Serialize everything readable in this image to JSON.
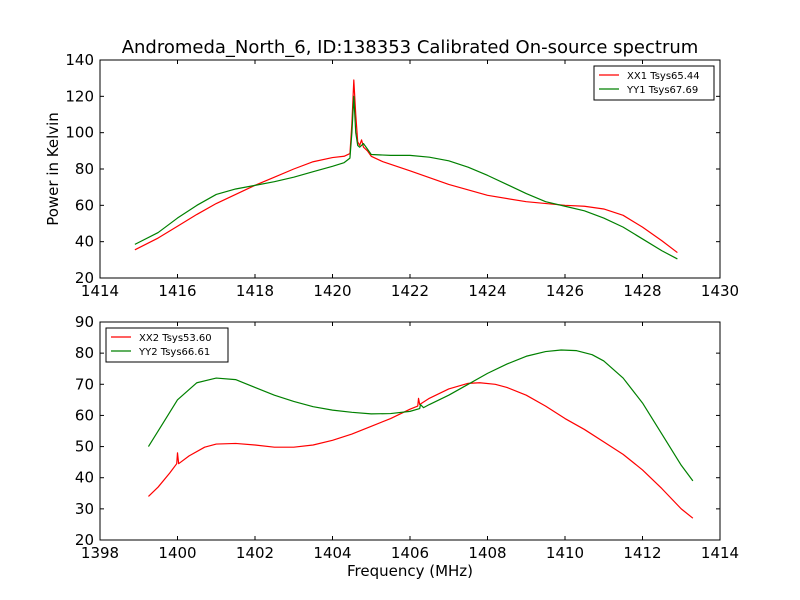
{
  "title": "Andromeda_North_6, ID:138353 Calibrated On-source spectrum",
  "xlabel": "Frequency (MHz)",
  "ylabel": "Power in Kelvin",
  "chart_data": [
    {
      "type": "line",
      "xlim": [
        1414,
        1430
      ],
      "ylim": [
        20,
        140
      ],
      "xticks": [
        1414,
        1416,
        1418,
        1420,
        1422,
        1424,
        1426,
        1428,
        1430
      ],
      "yticks": [
        20,
        40,
        60,
        80,
        100,
        120,
        140
      ],
      "legend_position": "top-right",
      "series": [
        {
          "name": "XX1 Tsys65.44",
          "color": "#ff0000",
          "points": [
            [
              1414.9,
              35.5
            ],
            [
              1415.5,
              42
            ],
            [
              1416,
              48.5
            ],
            [
              1416.5,
              55
            ],
            [
              1417,
              61
            ],
            [
              1417.5,
              66
            ],
            [
              1418,
              71
            ],
            [
              1418.5,
              75.5
            ],
            [
              1419,
              80
            ],
            [
              1419.5,
              84
            ],
            [
              1420,
              86.3
            ],
            [
              1420.3,
              87
            ],
            [
              1420.45,
              88.5
            ],
            [
              1420.5,
              105
            ],
            [
              1420.55,
              129
            ],
            [
              1420.6,
              110
            ],
            [
              1420.65,
              95
            ],
            [
              1420.7,
              93
            ],
            [
              1420.75,
              96
            ],
            [
              1420.8,
              92
            ],
            [
              1420.9,
              90
            ],
            [
              1421,
              87
            ],
            [
              1421.3,
              84
            ],
            [
              1422,
              79
            ],
            [
              1423,
              71.5
            ],
            [
              1424,
              65.5
            ],
            [
              1425,
              62
            ],
            [
              1426,
              60
            ],
            [
              1426.5,
              59.5
            ],
            [
              1427,
              58
            ],
            [
              1427.5,
              54.5
            ],
            [
              1428,
              48
            ],
            [
              1428.5,
              40.5
            ],
            [
              1428.9,
              34
            ]
          ]
        },
        {
          "name": "YY1 Tsys67.69",
          "color": "#008000",
          "points": [
            [
              1414.9,
              38.5
            ],
            [
              1415.5,
              45
            ],
            [
              1416,
              53
            ],
            [
              1416.5,
              60
            ],
            [
              1417,
              66
            ],
            [
              1417.5,
              69
            ],
            [
              1418,
              71
            ],
            [
              1418.5,
              73
            ],
            [
              1419,
              75.5
            ],
            [
              1419.5,
              78.5
            ],
            [
              1420,
              81.5
            ],
            [
              1420.3,
              83.5
            ],
            [
              1420.45,
              86
            ],
            [
              1420.5,
              100
            ],
            [
              1420.55,
              120
            ],
            [
              1420.6,
              100
            ],
            [
              1420.65,
              93
            ],
            [
              1420.7,
              92
            ],
            [
              1420.8,
              94
            ],
            [
              1420.9,
              91
            ],
            [
              1421,
              88
            ],
            [
              1421.5,
              87.5
            ],
            [
              1422,
              87.5
            ],
            [
              1422.5,
              86.5
            ],
            [
              1423,
              84.5
            ],
            [
              1423.5,
              81
            ],
            [
              1424,
              76.5
            ],
            [
              1424.5,
              71.5
            ],
            [
              1425,
              66.5
            ],
            [
              1425.5,
              62
            ],
            [
              1426,
              59.5
            ],
            [
              1426.5,
              57
            ],
            [
              1427,
              53
            ],
            [
              1427.5,
              48
            ],
            [
              1428,
              41.5
            ],
            [
              1428.5,
              35
            ],
            [
              1428.9,
              30.5
            ]
          ]
        }
      ]
    },
    {
      "type": "line",
      "xlim": [
        1398,
        1414
      ],
      "ylim": [
        20,
        90
      ],
      "xticks": [
        1398,
        1400,
        1402,
        1404,
        1406,
        1408,
        1410,
        1412,
        1414
      ],
      "yticks": [
        20,
        30,
        40,
        50,
        60,
        70,
        80,
        90
      ],
      "legend_position": "top-left",
      "series": [
        {
          "name": "XX2 Tsys53.60",
          "color": "#ff0000",
          "points": [
            [
              1399.25,
              34
            ],
            [
              1399.5,
              37
            ],
            [
              1399.8,
              41.5
            ],
            [
              1399.98,
              44.5
            ],
            [
              1400,
              48
            ],
            [
              1400.03,
              44.5
            ],
            [
              1400.3,
              47
            ],
            [
              1400.7,
              49.8
            ],
            [
              1401,
              50.8
            ],
            [
              1401.5,
              51
            ],
            [
              1402,
              50.5
            ],
            [
              1402.5,
              49.8
            ],
            [
              1403,
              49.8
            ],
            [
              1403.5,
              50.5
            ],
            [
              1404,
              52
            ],
            [
              1404.5,
              54
            ],
            [
              1405,
              56.5
            ],
            [
              1405.5,
              59
            ],
            [
              1406,
              62
            ],
            [
              1406.2,
              63
            ],
            [
              1406.22,
              65.5
            ],
            [
              1406.25,
              63.5
            ],
            [
              1406.5,
              65.5
            ],
            [
              1407,
              68.5
            ],
            [
              1407.5,
              70.3
            ],
            [
              1407.8,
              70.5
            ],
            [
              1408.2,
              70
            ],
            [
              1408.5,
              69
            ],
            [
              1409,
              66.5
            ],
            [
              1409.5,
              63
            ],
            [
              1410,
              59
            ],
            [
              1410.5,
              55.5
            ],
            [
              1411,
              51.5
            ],
            [
              1411.5,
              47.5
            ],
            [
              1412,
              42.5
            ],
            [
              1412.5,
              36.5
            ],
            [
              1413,
              30
            ],
            [
              1413.3,
              27
            ]
          ]
        },
        {
          "name": "YY2 Tsys66.61",
          "color": "#008000",
          "points": [
            [
              1399.25,
              50
            ],
            [
              1399.6,
              57
            ],
            [
              1400,
              65
            ],
            [
              1400.5,
              70.5
            ],
            [
              1401,
              72
            ],
            [
              1401.5,
              71.5
            ],
            [
              1402,
              69
            ],
            [
              1402.5,
              66.5
            ],
            [
              1403,
              64.5
            ],
            [
              1403.5,
              62.8
            ],
            [
              1404,
              61.7
            ],
            [
              1404.5,
              61
            ],
            [
              1405,
              60.5
            ],
            [
              1405.5,
              60.6
            ],
            [
              1406,
              61.3
            ],
            [
              1406.25,
              62.2
            ],
            [
              1406.27,
              63.5
            ],
            [
              1406.35,
              62.5
            ],
            [
              1406.5,
              63.5
            ],
            [
              1407,
              66.5
            ],
            [
              1407.5,
              70
            ],
            [
              1408,
              73.5
            ],
            [
              1408.5,
              76.5
            ],
            [
              1409,
              79
            ],
            [
              1409.5,
              80.5
            ],
            [
              1409.9,
              81
            ],
            [
              1410.3,
              80.8
            ],
            [
              1410.7,
              79.5
            ],
            [
              1411,
              77.5
            ],
            [
              1411.5,
              72
            ],
            [
              1412,
              64
            ],
            [
              1412.5,
              54
            ],
            [
              1413,
              44
            ],
            [
              1413.3,
              39
            ]
          ]
        }
      ]
    }
  ]
}
